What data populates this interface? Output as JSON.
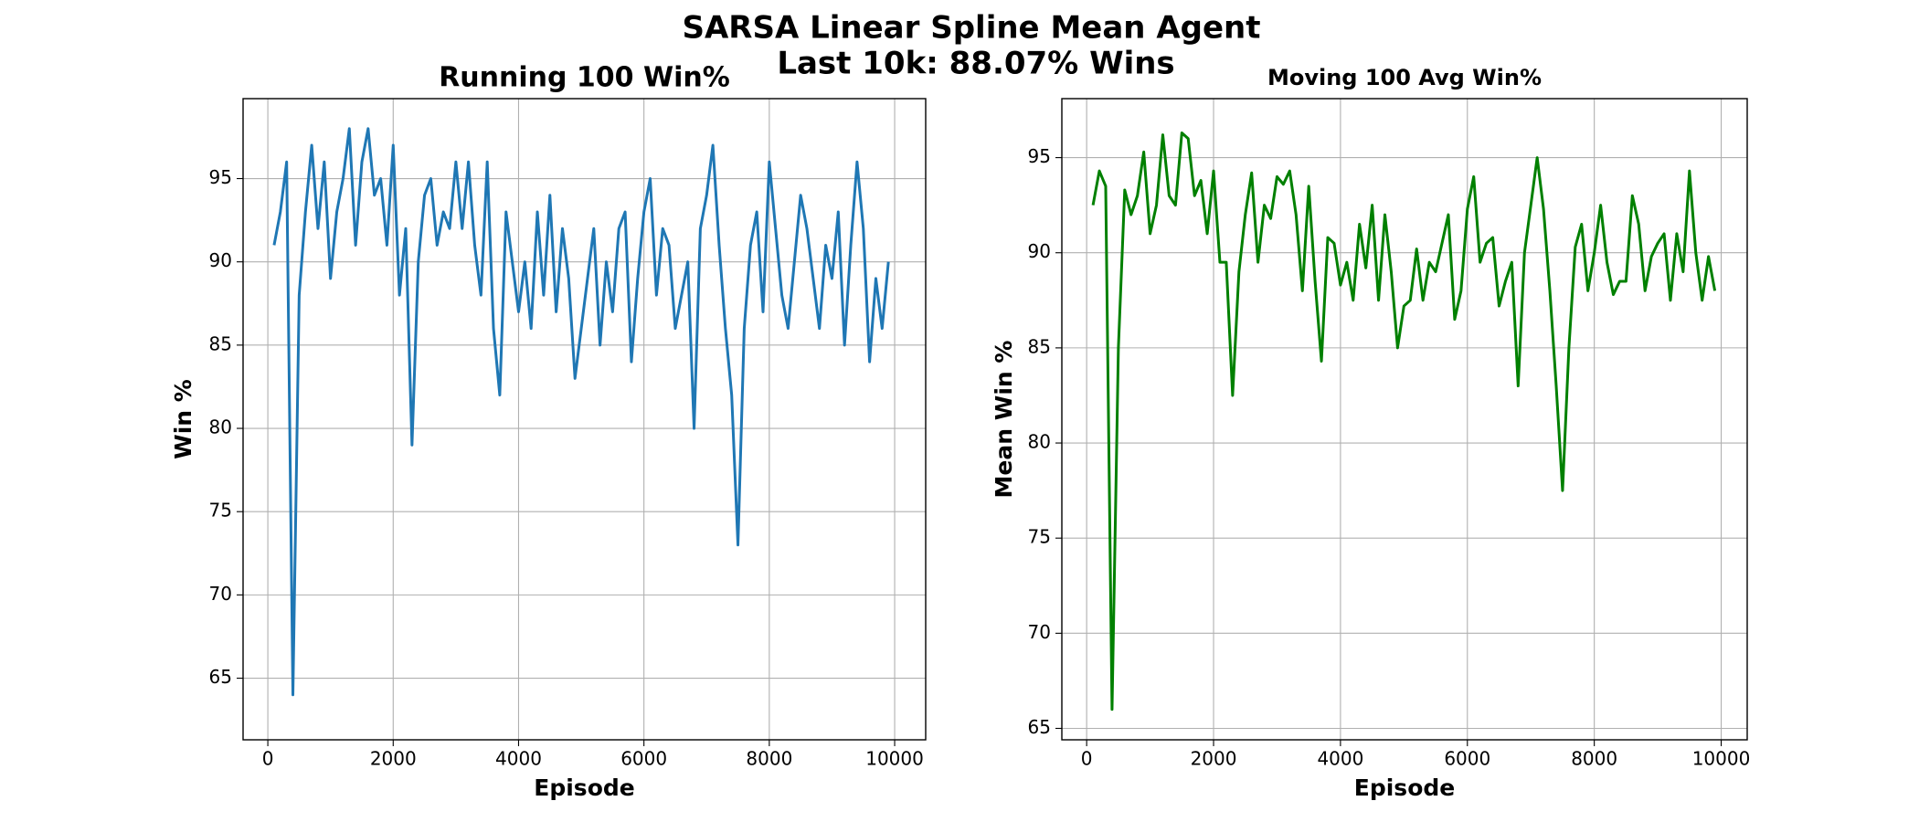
{
  "suptitle": [
    "SARSA Linear Spline Mean Agent",
    "Last 10k: 88.07% Wins"
  ],
  "chart_data": [
    {
      "type": "line",
      "title": "Running 100 Win%",
      "xlabel": "Episode",
      "ylabel": "Win %",
      "color": "#1f77b4",
      "grid": true,
      "xlim": [
        -395,
        10495
      ],
      "ylim": [
        61.3,
        99.8
      ],
      "xticks": [
        0,
        2000,
        4000,
        6000,
        8000,
        10000
      ],
      "yticks": [
        65,
        70,
        75,
        80,
        85,
        90,
        95
      ],
      "x": [
        100,
        200,
        300,
        400,
        500,
        600,
        700,
        800,
        900,
        1000,
        1100,
        1200,
        1300,
        1400,
        1500,
        1600,
        1700,
        1800,
        1900,
        2000,
        2100,
        2200,
        2300,
        2400,
        2500,
        2600,
        2700,
        2800,
        2900,
        3000,
        3100,
        3200,
        3300,
        3400,
        3500,
        3600,
        3700,
        3800,
        3900,
        4000,
        4100,
        4200,
        4300,
        4400,
        4500,
        4600,
        4700,
        4800,
        4900,
        5000,
        5100,
        5200,
        5300,
        5400,
        5500,
        5600,
        5700,
        5800,
        5900,
        6000,
        6100,
        6200,
        6300,
        6400,
        6500,
        6600,
        6700,
        6800,
        6900,
        7000,
        7100,
        7200,
        7300,
        7400,
        7500,
        7600,
        7700,
        7800,
        7900,
        8000,
        8100,
        8200,
        8300,
        8400,
        8500,
        8600,
        8700,
        8800,
        8900,
        9000,
        9100,
        9200,
        9300,
        9400,
        9500,
        9600,
        9700,
        9800,
        9900
      ],
      "values": [
        91,
        93,
        96,
        64,
        88,
        93,
        97,
        92,
        96,
        89,
        93,
        95,
        98,
        91,
        96,
        98,
        94,
        95,
        91,
        97,
        88,
        92,
        79,
        90,
        94,
        95,
        91,
        93,
        92,
        96,
        92,
        96,
        91,
        88,
        96,
        86,
        82,
        93,
        90,
        87,
        90,
        86,
        93,
        88,
        94,
        87,
        92,
        89,
        83,
        86,
        89,
        92,
        85,
        90,
        87,
        92,
        93,
        84,
        89,
        93,
        95,
        88,
        92,
        91,
        86,
        88,
        90,
        80,
        92,
        94,
        97,
        91,
        86,
        82,
        73,
        86,
        91,
        93,
        87,
        96,
        92,
        88,
        86,
        90,
        94,
        92,
        89,
        86,
        91,
        89,
        93,
        85,
        91,
        96,
        92,
        84,
        89,
        86,
        90
      ]
    },
    {
      "type": "line",
      "title": "Moving 100 Avg Win%",
      "xlabel": "Episode",
      "ylabel": "Mean Win %",
      "color": "green",
      "grid": true,
      "xlim": [
        -391,
        10410
      ],
      "ylim": [
        64.4,
        98.1
      ],
      "xticks": [
        0,
        2000,
        4000,
        6000,
        8000,
        10000
      ],
      "yticks": [
        65,
        70,
        75,
        80,
        85,
        90,
        95
      ],
      "x": [
        100,
        200,
        300,
        400,
        500,
        600,
        700,
        800,
        900,
        1000,
        1100,
        1200,
        1300,
        1400,
        1500,
        1600,
        1700,
        1800,
        1900,
        2000,
        2100,
        2200,
        2300,
        2400,
        2500,
        2600,
        2700,
        2800,
        2900,
        3000,
        3100,
        3200,
        3300,
        3400,
        3500,
        3600,
        3700,
        3800,
        3900,
        4000,
        4100,
        4200,
        4300,
        4400,
        4500,
        4600,
        4700,
        4800,
        4900,
        5000,
        5100,
        5200,
        5300,
        5400,
        5500,
        5600,
        5700,
        5800,
        5900,
        6000,
        6100,
        6200,
        6300,
        6400,
        6500,
        6600,
        6700,
        6800,
        6900,
        7000,
        7100,
        7200,
        7300,
        7400,
        7500,
        7600,
        7700,
        7800,
        7900,
        8000,
        8100,
        8200,
        8300,
        8400,
        8500,
        8600,
        8700,
        8800,
        8900,
        9000,
        9100,
        9200,
        9300,
        9400,
        9500,
        9600,
        9700,
        9800,
        9900
      ],
      "values": [
        92.5,
        94.3,
        93.5,
        66,
        85,
        93.3,
        92,
        93,
        95.3,
        91,
        92.5,
        96.2,
        93,
        92.5,
        96.3,
        96,
        93,
        93.8,
        91,
        94.3,
        89.5,
        89.5,
        82.5,
        89,
        92,
        94.2,
        89.5,
        92.5,
        91.8,
        94,
        93.6,
        94.3,
        92,
        88,
        93.5,
        88.5,
        84.3,
        90.8,
        90.5,
        88.3,
        89.5,
        87.5,
        91.5,
        89.2,
        92.5,
        87.5,
        92,
        89,
        85,
        87.2,
        87.5,
        90.2,
        87.5,
        89.5,
        89,
        90.5,
        92,
        86.5,
        88,
        92.3,
        94,
        89.5,
        90.5,
        90.8,
        87.2,
        88.5,
        89.5,
        83,
        90,
        92.5,
        95,
        92.3,
        88,
        83,
        77.5,
        85,
        90.3,
        91.5,
        88,
        90,
        92.5,
        89.5,
        87.8,
        88.5,
        88.5,
        93,
        91.5,
        88,
        89.8,
        90.5,
        91,
        87.5,
        91,
        89,
        94.3,
        90,
        87.5,
        89.8,
        88
      ]
    }
  ]
}
